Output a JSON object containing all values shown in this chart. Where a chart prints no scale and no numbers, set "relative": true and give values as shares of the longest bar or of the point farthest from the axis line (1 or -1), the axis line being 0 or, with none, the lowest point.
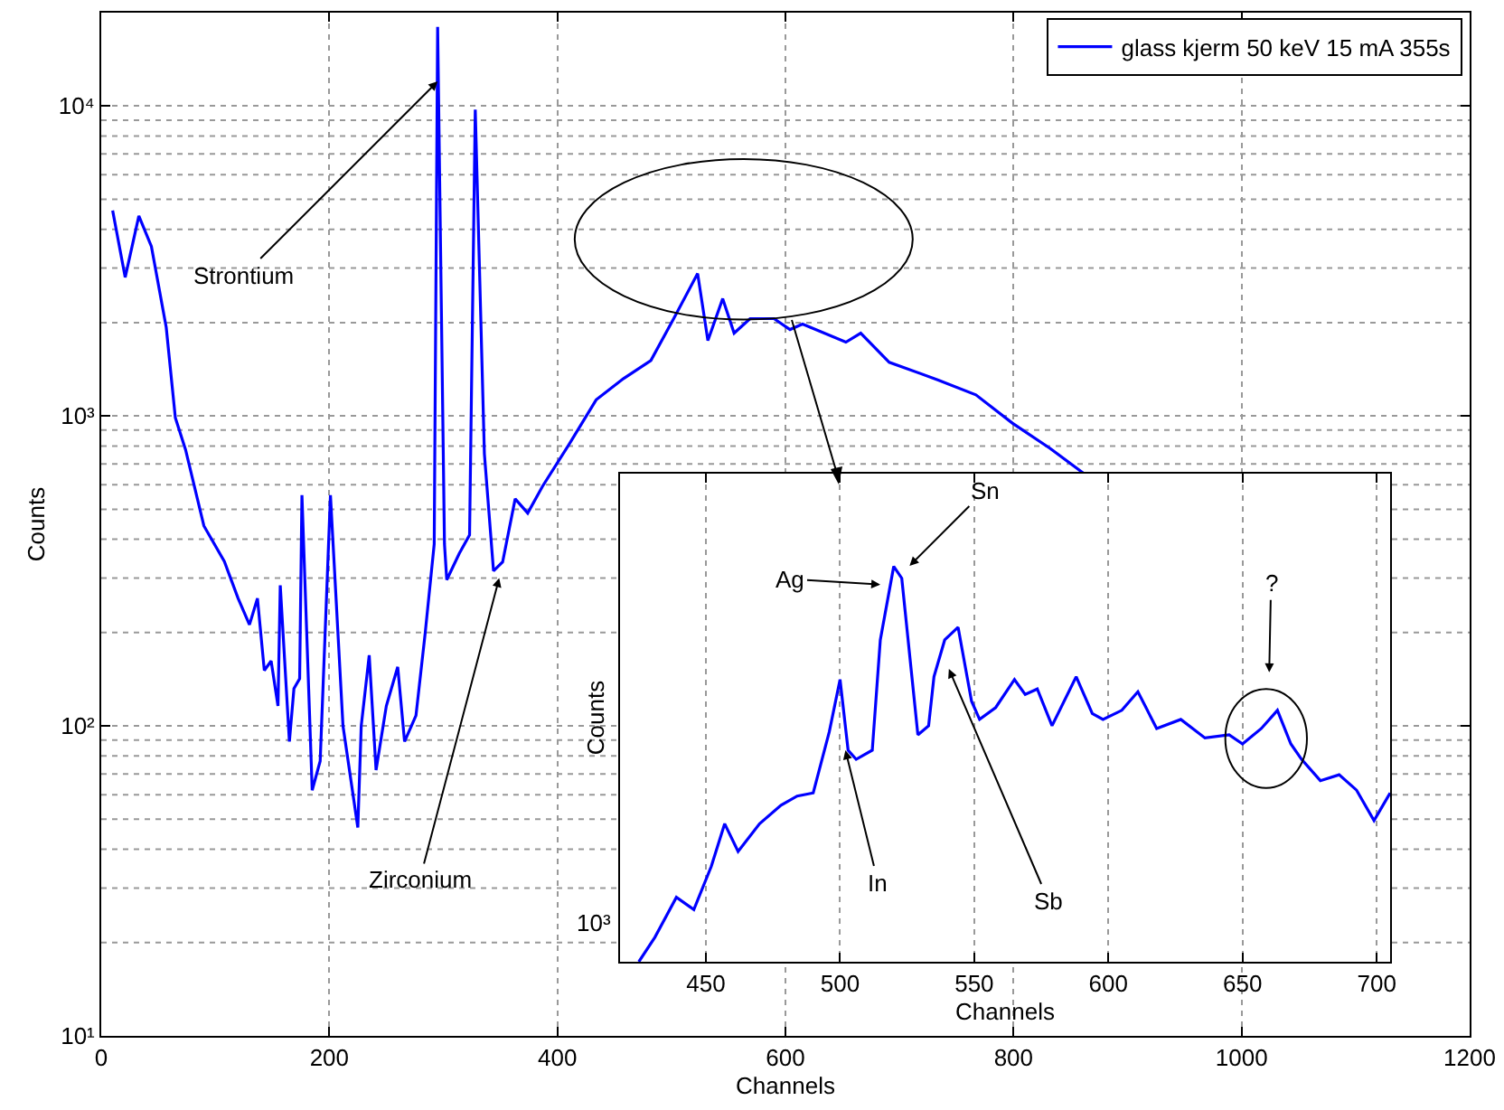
{
  "chart_data": [
    {
      "type": "line",
      "xlabel": "Channels",
      "ylabel": "Counts",
      "log": "y",
      "grid": true,
      "legend": "top right",
      "xlim": [
        0,
        1200
      ],
      "xticks": [
        0,
        200,
        400,
        600,
        800,
        1000,
        1200
      ],
      "ylim": [
        10,
        20000
      ],
      "yticks": [
        {
          "value": 10,
          "label": "10¹"
        },
        {
          "value": 100,
          "label": "10²"
        },
        {
          "value": 1000,
          "label": "10³"
        },
        {
          "value": 10000,
          "label": "10⁴"
        }
      ],
      "x": [
        10,
        21,
        33,
        44,
        57,
        65,
        74,
        90,
        108,
        120,
        130,
        137,
        143,
        149,
        155,
        157,
        165,
        169,
        174,
        176,
        185,
        192,
        201,
        212,
        225,
        228,
        235,
        241,
        250,
        260,
        266,
        276,
        284,
        292,
        295,
        301,
        303,
        314,
        323,
        328,
        336,
        344,
        352,
        363,
        374,
        387,
        410,
        434,
        458,
        482,
        502,
        523,
        532,
        545,
        555,
        569,
        590,
        604,
        615,
        653,
        666,
        691,
        734,
        767,
        799,
        832,
        864
      ],
      "series": [
        {
          "name": "glass kjerm 50 keV 15 mA 355s",
          "color": "#0000ff",
          "values": [
            4600,
            2800,
            4420,
            3520,
            1930,
            986,
            777,
            442,
            339,
            258,
            212,
            258,
            151,
            162,
            116,
            284,
            89,
            132,
            142,
            555,
            62,
            77,
            555,
            100,
            47,
            100,
            169,
            72,
            116,
            155,
            89,
            108,
            198,
            386,
            18000,
            386,
            296,
            360,
            413,
            9730,
            755,
            316,
            338,
            540,
            486,
            593,
            807,
            1127,
            1320,
            1510,
            2060,
            2880,
            1750,
            2390,
            1850,
            2060,
            2060,
            1900,
            1980,
            1730,
            1850,
            1490,
            1306,
            1170,
            948,
            786,
            643
          ]
        }
      ],
      "annotations": [
        {
          "text": "Strontium",
          "x": 295,
          "y": 12000
        },
        {
          "text": "Zirconium",
          "x": 349,
          "y": 300
        }
      ]
    },
    {
      "type": "line",
      "xlabel": "Channels",
      "ylabel": "Counts",
      "relative": true,
      "grid": "x",
      "xlim": [
        418,
        705
      ],
      "xticks": [
        450,
        500,
        550,
        600,
        650,
        700
      ],
      "x": [
        425,
        431,
        439,
        445.5,
        452,
        457,
        462,
        470,
        478,
        484,
        490,
        496,
        500,
        503,
        506,
        512,
        515,
        520,
        523,
        529,
        533,
        535,
        539,
        544,
        549,
        552,
        558,
        565,
        569,
        573.5,
        579,
        588,
        594,
        598,
        605,
        611,
        618,
        627,
        636,
        645,
        650,
        657,
        663,
        668,
        672,
        679,
        686,
        692.5,
        699,
        705
      ],
      "series": [
        {
          "color": "#0000ff",
          "values": [
            0,
            0.062,
            0.163,
            0.132,
            0.241,
            0.349,
            0.279,
            0.349,
            0.396,
            0.419,
            0.427,
            0.582,
            0.714,
            0.535,
            0.512,
            0.535,
            0.814,
            1,
            0.97,
            0.574,
            0.597,
            0.721,
            0.814,
            0.846,
            0.659,
            0.613,
            0.643,
            0.714,
            0.676,
            0.69,
            0.597,
            0.721,
            0.628,
            0.613,
            0.636,
            0.683,
            0.59,
            0.613,
            0.566,
            0.574,
            0.551,
            0.59,
            0.636,
            0.551,
            0.512,
            0.458,
            0.473,
            0.434,
            0.357,
            0.427
          ]
        }
      ],
      "annotations": [
        {
          "text": "Ag",
          "x": 515,
          "y": 0.954
        },
        "Sn",
        {
          "text": "In",
          "x": 502,
          "y": 0.535
        },
        "Sb",
        "?",
        "10³"
      ]
    }
  ]
}
